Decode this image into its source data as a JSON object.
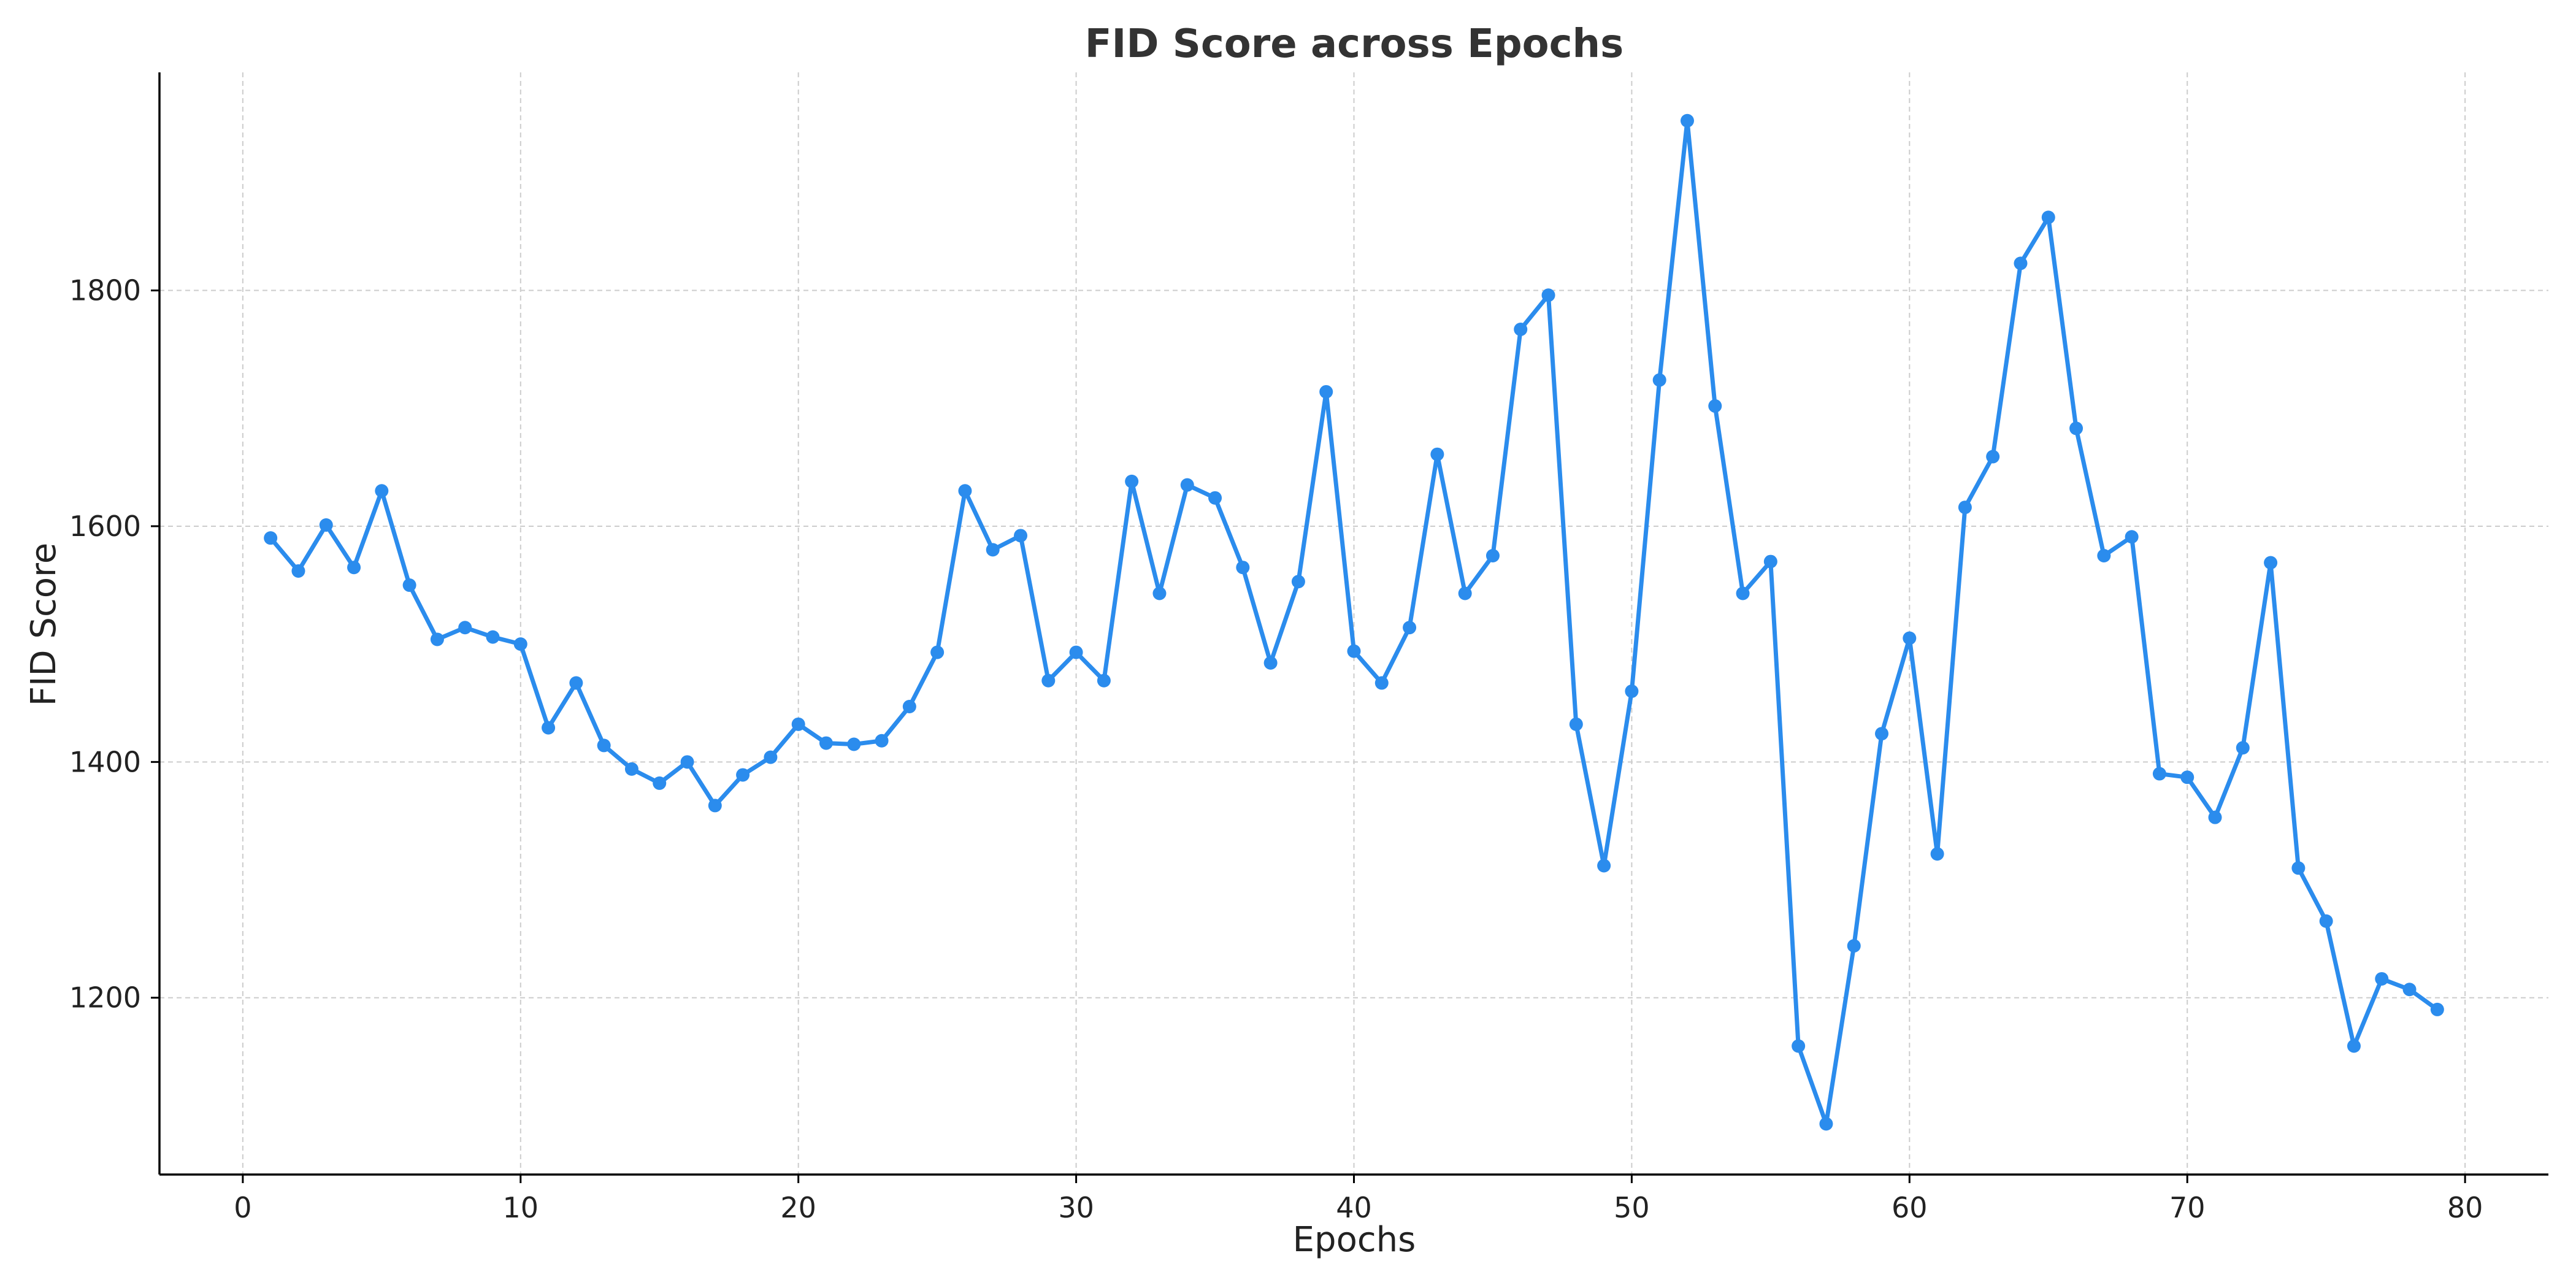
{
  "chart_data": {
    "type": "line",
    "title": "FID Score across Epochs",
    "xlabel": "Epochs",
    "ylabel": "FID Score",
    "xlim": [
      -3,
      83
    ],
    "ylim": [
      1050,
      1985
    ],
    "xticks": [
      0,
      10,
      20,
      30,
      40,
      50,
      60,
      70,
      80
    ],
    "yticks": [
      1200,
      1400,
      1600,
      1800
    ],
    "grid": true,
    "color": "#2b8ced",
    "x": [
      1,
      2,
      3,
      4,
      5,
      6,
      7,
      8,
      9,
      10,
      11,
      12,
      13,
      14,
      15,
      16,
      17,
      18,
      19,
      20,
      21,
      22,
      23,
      24,
      25,
      26,
      27,
      28,
      29,
      30,
      31,
      32,
      33,
      34,
      35,
      36,
      37,
      38,
      39,
      40,
      41,
      42,
      43,
      44,
      45,
      46,
      47,
      48,
      49,
      50,
      51,
      52,
      53,
      54,
      55,
      56,
      57,
      58,
      59,
      60,
      61,
      62,
      63,
      64,
      65,
      66,
      67,
      68,
      69,
      70,
      71,
      72,
      73,
      74,
      75,
      76,
      77,
      78,
      79
    ],
    "series": [
      {
        "values": [
          1590,
          1562,
          1601,
          1565,
          1630,
          1550,
          1504,
          1514,
          1506,
          1500,
          1429,
          1467,
          1414,
          1394,
          1382,
          1400,
          1363,
          1389,
          1404,
          1432,
          1416,
          1415,
          1418,
          1447,
          1493,
          1630,
          1580,
          1592,
          1469,
          1493,
          1469,
          1638,
          1543,
          1635,
          1624,
          1565,
          1484,
          1553,
          1714,
          1494,
          1467,
          1514,
          1661,
          1543,
          1575,
          1767,
          1796,
          1432,
          1312,
          1460,
          1724,
          1944,
          1702,
          1543,
          1570,
          1159,
          1093,
          1244,
          1424,
          1505,
          1322,
          1616,
          1659,
          1823,
          1862,
          1683,
          1575,
          1591,
          1390,
          1387,
          1353,
          1412,
          1569,
          1310,
          1265,
          1159,
          1216,
          1207,
          1190
        ]
      }
    ]
  }
}
